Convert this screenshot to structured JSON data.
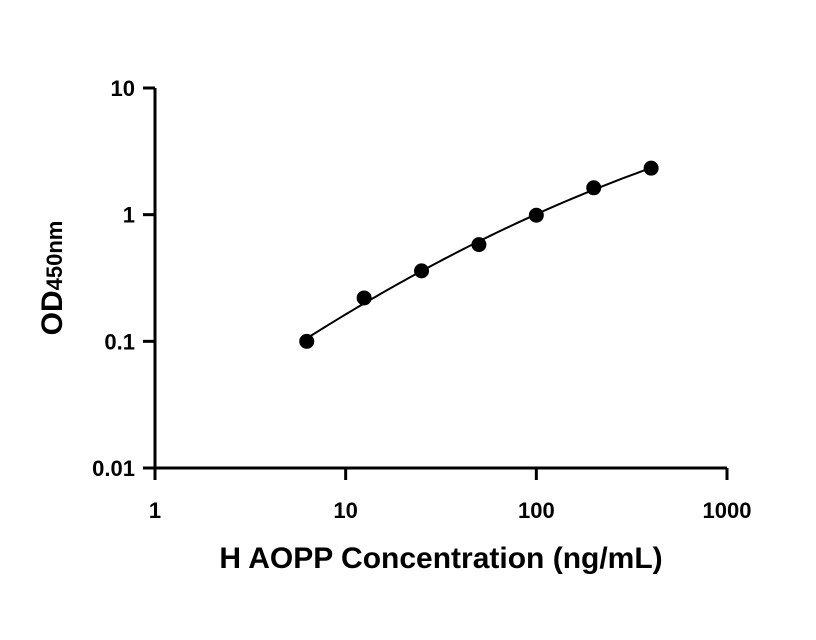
{
  "chart_data": {
    "type": "scatter",
    "title": "",
    "xlabel": "H AOPP Concentration (ng/mL)",
    "ylabel": {
      "main": "OD",
      "subscript": "450nm"
    },
    "xscale": "log",
    "yscale": "log",
    "xlim": [
      1,
      1000
    ],
    "ylim": [
      0.01,
      10
    ],
    "xticks": [
      1,
      10,
      100,
      1000
    ],
    "xtick_labels": [
      "1",
      "10",
      "100",
      "1000"
    ],
    "yticks": [
      0.01,
      0.1,
      1,
      10
    ],
    "ytick_labels": [
      "0.01",
      "0.1",
      "1",
      "10"
    ],
    "grid": false,
    "legend": false,
    "series": [
      {
        "x": [
          6.25,
          12.5,
          25,
          50,
          100,
          200,
          400
        ],
        "y": [
          0.1,
          0.22,
          0.36,
          0.58,
          0.99,
          1.63,
          2.33
        ],
        "marker": "circle",
        "color": "#000000",
        "fit_curve": true
      }
    ]
  }
}
